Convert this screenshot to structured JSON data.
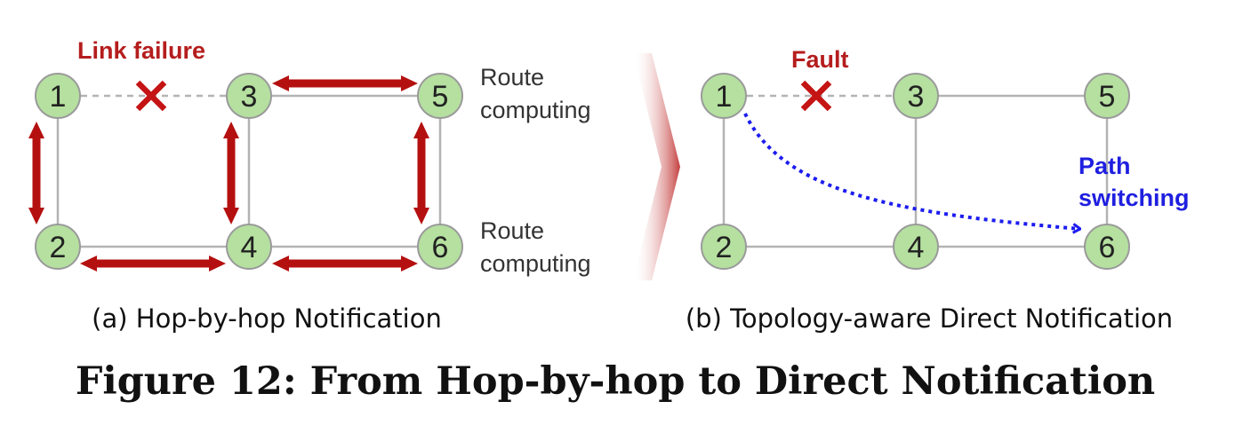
{
  "colors": {
    "node_fill": "#b5e0a0",
    "node_stroke": "#9a9a9a",
    "link": "#b3b3b3",
    "failed_link": "#b3b3b3",
    "fault_mark": "#c41414",
    "notify_arrow": "#b51010",
    "path_arrow": "#1c1cf0",
    "annot_red": "#b51d1d",
    "annot_blue": "#1f1fe0"
  },
  "panel_a": {
    "annotation": "Link failure",
    "route_label_top": [
      "Route",
      "computing"
    ],
    "route_label_bottom": [
      "Route",
      "computing"
    ],
    "caption": "(a) Hop-by-hop Notification",
    "nodes": [
      "1",
      "2",
      "3",
      "4",
      "5",
      "6"
    ]
  },
  "panel_b": {
    "annotation": "Fault",
    "path_label": [
      "Path",
      "switching"
    ],
    "caption": "(b) Topology-aware Direct Notification",
    "nodes": [
      "1",
      "2",
      "3",
      "4",
      "5",
      "6"
    ]
  },
  "figure_title": "Figure 12: From Hop-by-hop to Direct Notification"
}
